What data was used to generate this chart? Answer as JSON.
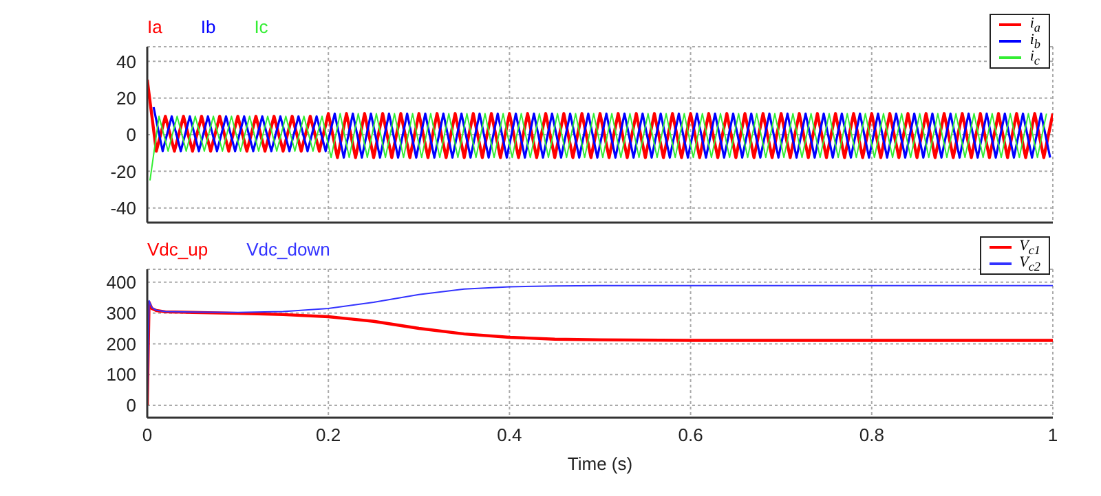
{
  "chart_data": [
    {
      "type": "line",
      "annotations": [
        "Ia",
        "Ib",
        "Ic"
      ],
      "xlim": [
        0,
        1
      ],
      "xticks": [
        0,
        {
          "value": 0.2,
          "label": null
        },
        {
          "value": 0.4,
          "label": null
        },
        {
          "value": 0.6,
          "label": null
        },
        {
          "value": 0.8,
          "label": null
        },
        1
      ],
      "ylim": [
        -48,
        48
      ],
      "yticks": [
        -40,
        -20,
        0,
        20,
        40
      ],
      "tick_labels": "y",
      "grid": true,
      "legend": "top right",
      "series": [
        {
          "name": "i$_{a}$",
          "color": "#ff0000",
          "x": [
            0,
            0.01,
            0.02,
            0.03,
            0.04,
            0.05,
            0.06,
            0.07,
            0.08,
            0.09,
            0.1,
            0.11,
            0.12,
            0.13,
            0.14,
            0.15,
            0.16,
            0.17,
            0.18,
            0.19,
            0.2,
            0.21,
            0.22,
            0.23,
            0.24,
            0.25,
            0.26,
            0.27,
            0.28,
            0.29,
            0.3,
            0.31,
            0.32,
            0.33,
            0.34,
            0.35,
            0.36,
            0.37,
            0.38,
            0.39,
            0.4,
            0.41,
            0.42,
            0.43,
            0.44,
            0.45,
            0.46,
            0.47,
            0.48,
            0.49,
            0.5,
            0.51,
            0.52,
            0.53,
            0.54,
            0.55,
            0.56,
            0.57,
            0.58,
            0.59,
            0.6,
            0.61,
            0.62,
            0.63,
            0.64,
            0.65,
            0.66,
            0.67,
            0.68,
            0.69,
            0.7,
            0.71,
            0.72,
            0.73,
            0.74,
            0.75,
            0.76,
            0.77,
            0.78,
            0.79,
            0.8,
            0.81,
            0.82,
            0.83,
            0.84,
            0.85,
            0.86,
            0.87,
            0.88,
            0.89,
            0.9,
            0.91,
            0.92,
            0.93,
            0.94,
            0.95,
            0.96,
            0.97,
            0.98,
            0.99,
            1
          ],
          "values": [
            30,
            -9,
            10,
            -9,
            10,
            -9,
            10,
            -9,
            10,
            -9,
            10,
            -9,
            10,
            -9,
            10,
            -9,
            10,
            -9,
            10,
            -9,
            11.5,
            -12.5,
            11.5,
            -12.5,
            11.5,
            -12.5,
            11.5,
            -12.5,
            11.5,
            -12.5,
            11.5,
            -12.5,
            11.5,
            -12.5,
            11.5,
            -12.5,
            11.5,
            -12.5,
            11.5,
            -12.5,
            11.5,
            -12.5,
            11.5,
            -12.5,
            11.5,
            -12.5,
            11.5,
            -12.5,
            11.5,
            -12.5,
            11.5,
            -12.5,
            11.5,
            -12.5,
            11.5,
            -12.5,
            11.5,
            -12.5,
            11.5,
            -12.5,
            11.5,
            -12.5,
            11.5,
            -12.5,
            11.5,
            -12.5,
            11.5,
            -12.5,
            11.5,
            -12.5,
            11.5,
            -12.5,
            11.5,
            -12.5,
            11.5,
            -12.5,
            11.5,
            -12.5,
            11.5,
            -12.5,
            11.5,
            -12.5,
            11.5,
            -12.5,
            11.5,
            -12.5,
            11.5,
            -12.5,
            11.5,
            -12.5,
            11.5,
            -12.5,
            11.5,
            -12.5,
            11.5,
            -12.5,
            11.5,
            -12.5,
            11.5,
            -12.5,
            11.5
          ]
        },
        {
          "name": "i$_{b}$",
          "color": "#0000ff",
          "x": [
            0.007,
            0.017,
            0.027,
            0.037,
            0.047,
            0.057,
            0.067,
            0.077,
            0.087,
            0.097,
            0.107,
            0.117,
            0.127,
            0.137,
            0.147,
            0.157,
            0.167,
            0.177,
            0.187,
            0.197,
            0.207,
            0.217,
            0.227,
            0.237,
            0.247,
            0.257,
            0.267,
            0.277,
            0.287,
            0.297,
            0.307,
            0.317,
            0.327,
            0.337,
            0.347,
            0.357,
            0.367,
            0.377,
            0.387,
            0.397,
            0.407,
            0.417,
            0.427,
            0.437,
            0.447,
            0.457,
            0.467,
            0.477,
            0.487,
            0.497,
            0.507,
            0.517,
            0.527,
            0.537,
            0.547,
            0.557,
            0.567,
            0.577,
            0.587,
            0.597,
            0.607,
            0.617,
            0.627,
            0.637,
            0.647,
            0.657,
            0.667,
            0.677,
            0.687,
            0.697,
            0.707,
            0.717,
            0.727,
            0.737,
            0.747,
            0.757,
            0.767,
            0.777,
            0.787,
            0.797,
            0.807,
            0.817,
            0.827,
            0.837,
            0.847,
            0.857,
            0.867,
            0.877,
            0.887,
            0.897,
            0.907,
            0.917,
            0.927,
            0.937,
            0.947,
            0.957,
            0.967,
            0.977,
            0.987,
            0.997
          ],
          "values": [
            15,
            -9,
            10,
            -9,
            10,
            -9,
            10,
            -9,
            10,
            -9,
            10,
            -9,
            10,
            -9,
            10,
            -9,
            10,
            -9,
            10,
            -9,
            11.5,
            -12.5,
            11.5,
            -12.5,
            11.5,
            -12.5,
            11.5,
            -12.5,
            11.5,
            -12.5,
            11.5,
            -12.5,
            11.5,
            -12.5,
            11.5,
            -12.5,
            11.5,
            -12.5,
            11.5,
            -12.5,
            11.5,
            -12.5,
            11.5,
            -12.5,
            11.5,
            -12.5,
            11.5,
            -12.5,
            11.5,
            -12.5,
            11.5,
            -12.5,
            11.5,
            -12.5,
            11.5,
            -12.5,
            11.5,
            -12.5,
            11.5,
            -12.5,
            11.5,
            -12.5,
            11.5,
            -12.5,
            11.5,
            -12.5,
            11.5,
            -12.5,
            11.5,
            -12.5,
            11.5,
            -12.5,
            11.5,
            -12.5,
            11.5,
            -12.5,
            11.5,
            -12.5,
            11.5,
            -12.5,
            11.5,
            -12.5,
            11.5,
            -12.5,
            11.5,
            -12.5,
            11.5,
            -12.5,
            11.5,
            -12.5,
            11.5,
            -12.5,
            11.5,
            -12.5,
            11.5,
            -12.5,
            11.5,
            -12.5,
            11.5,
            -12.5
          ]
        },
        {
          "name": "i$_{c}$",
          "color": "#33ee33",
          "x": [
            0.003,
            0.013,
            0.023,
            0.033,
            0.043,
            0.053,
            0.063,
            0.073,
            0.083,
            0.093,
            0.103,
            0.113,
            0.123,
            0.133,
            0.143,
            0.153,
            0.163,
            0.173,
            0.183,
            0.193,
            0.203,
            0.213,
            0.223,
            0.233,
            0.243,
            0.253,
            0.263,
            0.273,
            0.283,
            0.293,
            0.303,
            0.313,
            0.323,
            0.333,
            0.343,
            0.353,
            0.363,
            0.373,
            0.383,
            0.393,
            0.403,
            0.413,
            0.423,
            0.433,
            0.443,
            0.453,
            0.463,
            0.473,
            0.483,
            0.493,
            0.503,
            0.513,
            0.523,
            0.533,
            0.543,
            0.553,
            0.563,
            0.573,
            0.583,
            0.593,
            0.603,
            0.613,
            0.623,
            0.633,
            0.643,
            0.653,
            0.663,
            0.673,
            0.683,
            0.693,
            0.703,
            0.713,
            0.723,
            0.733,
            0.743,
            0.753,
            0.763,
            0.773,
            0.783,
            0.793,
            0.803,
            0.813,
            0.823,
            0.833,
            0.843,
            0.853,
            0.863,
            0.873,
            0.883,
            0.893,
            0.903,
            0.913,
            0.923,
            0.933,
            0.943,
            0.953,
            0.963,
            0.973,
            0.983,
            0.993
          ],
          "values": [
            -25,
            10,
            -9,
            10,
            -9,
            10,
            -9,
            10,
            -9,
            10,
            -9,
            10,
            -9,
            10,
            -9,
            10,
            -9,
            10,
            -9,
            10,
            -12.5,
            11.5,
            -12.5,
            11.5,
            -12.5,
            11.5,
            -12.5,
            11.5,
            -12.5,
            11.5,
            -12.5,
            11.5,
            -12.5,
            11.5,
            -12.5,
            11.5,
            -12.5,
            11.5,
            -12.5,
            11.5,
            -12.5,
            11.5,
            -12.5,
            11.5,
            -12.5,
            11.5,
            -12.5,
            11.5,
            -12.5,
            11.5,
            -12.5,
            11.5,
            -12.5,
            11.5,
            -12.5,
            11.5,
            -12.5,
            11.5,
            -12.5,
            11.5,
            -12.5,
            11.5,
            -12.5,
            11.5,
            -12.5,
            11.5,
            -12.5,
            11.5,
            -12.5,
            11.5,
            -12.5,
            11.5,
            -12.5,
            11.5,
            -12.5,
            11.5,
            -12.5,
            11.5,
            -12.5,
            11.5,
            -12.5,
            11.5,
            -12.5,
            11.5,
            -12.5,
            11.5,
            -12.5,
            11.5,
            -12.5,
            11.5,
            -12.5,
            11.5,
            -12.5,
            11.5,
            -12.5,
            11.5,
            -12.5,
            11.5,
            -12.5,
            11.5
          ]
        }
      ]
    },
    {
      "type": "line",
      "annotations": [
        "Vdc_up",
        "Vdc_down"
      ],
      "xlabel": "Time (s)",
      "xlim": [
        0,
        1
      ],
      "xticks": [
        0,
        0.2,
        0.4,
        0.6,
        0.8,
        1
      ],
      "ylim": [
        -40,
        442
      ],
      "yticks": [
        0,
        100,
        200,
        300,
        400
      ],
      "grid": true,
      "legend": "top right",
      "series": [
        {
          "name": "V$_{c1}$",
          "color": "#ff0000",
          "x": [
            0,
            0.002,
            0.005,
            0.01,
            0.02,
            0.05,
            0.1,
            0.15,
            0.2,
            0.25,
            0.3,
            0.35,
            0.4,
            0.45,
            0.5,
            0.6,
            0.7,
            0.8,
            0.9,
            1
          ],
          "values": [
            0,
            335,
            315,
            308,
            304,
            302,
            299,
            295,
            288,
            273,
            250,
            232,
            221,
            215,
            213,
            211,
            211,
            211,
            211,
            211
          ]
        },
        {
          "name": "V$_{c2}$",
          "color": "#3333ff",
          "x": [
            0,
            0.002,
            0.005,
            0.01,
            0.02,
            0.05,
            0.1,
            0.15,
            0.2,
            0.25,
            0.3,
            0.35,
            0.4,
            0.45,
            0.5,
            0.6,
            0.7,
            0.8,
            0.9,
            1
          ],
          "values": [
            0,
            340,
            318,
            309,
            305,
            303,
            302,
            305,
            315,
            335,
            360,
            378,
            385,
            388,
            389,
            389,
            389,
            389,
            389,
            389
          ]
        }
      ]
    }
  ]
}
